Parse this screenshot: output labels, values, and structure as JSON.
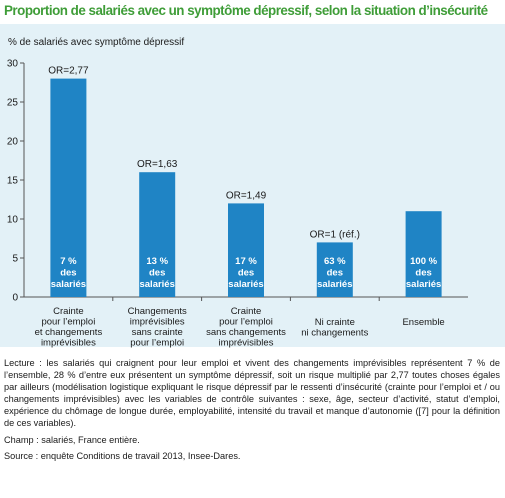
{
  "title": "Proportion de salariés avec un symptôme dépressif, selon la situation d’insécurité",
  "chart_data": {
    "type": "bar",
    "ylabel": "% de salariés avec symptôme dépressif",
    "ylim": [
      0,
      30
    ],
    "yticks": [
      0,
      5,
      10,
      15,
      20,
      25,
      30
    ],
    "grid": false,
    "bar_color": "#1f84c5",
    "categories": [
      [
        "Crainte",
        "pour l’emploi",
        "et changements",
        "imprévisibles"
      ],
      [
        "Changements",
        "imprévisibles",
        "sans crainte",
        "pour l’emploi"
      ],
      [
        "Crainte",
        "pour l’emploi",
        "sans changements",
        "imprévisibles"
      ],
      [
        "Ni crainte",
        "ni changements"
      ],
      [
        "Ensemble"
      ]
    ],
    "values": [
      28,
      16,
      12,
      7,
      11
    ],
    "or_labels": [
      "OR=2,77",
      "OR=1,63",
      "OR=1,49",
      "OR=1 (réf.)",
      ""
    ],
    "share_labels": [
      [
        "7 %",
        "des",
        "salariés"
      ],
      [
        "13 %",
        "des",
        "salariés"
      ],
      [
        "17 %",
        "des",
        "salariés"
      ],
      [
        "63 %",
        "des",
        "salariés"
      ],
      [
        "100 %",
        "des",
        "salariés"
      ]
    ]
  },
  "notes": {
    "lecture": "Lecture : les salariés qui craignent pour leur emploi et vivent des changements imprévisibles représentent 7 % de l’ensemble, 28 % d’entre eux présentent un symptôme dépressif, soit un risque multiplié par 2,77 toutes choses égales par ailleurs (modélisation logistique expliquant le risque dépressif par le ressenti d’insécurité (crainte pour l’emploi et / ou changements imprévisibles) avec les variables de contrôle suivantes : sexe, âge, secteur d’activité, statut d’emploi, expérience du chômage de longue durée, employabilité, intensité du travail et manque d’autonomie ([7] pour la définition de ces variables).",
    "champ": "Champ : salariés, France entière.",
    "source": "Source : enquête Conditions de travail 2013, Insee-Dares."
  }
}
